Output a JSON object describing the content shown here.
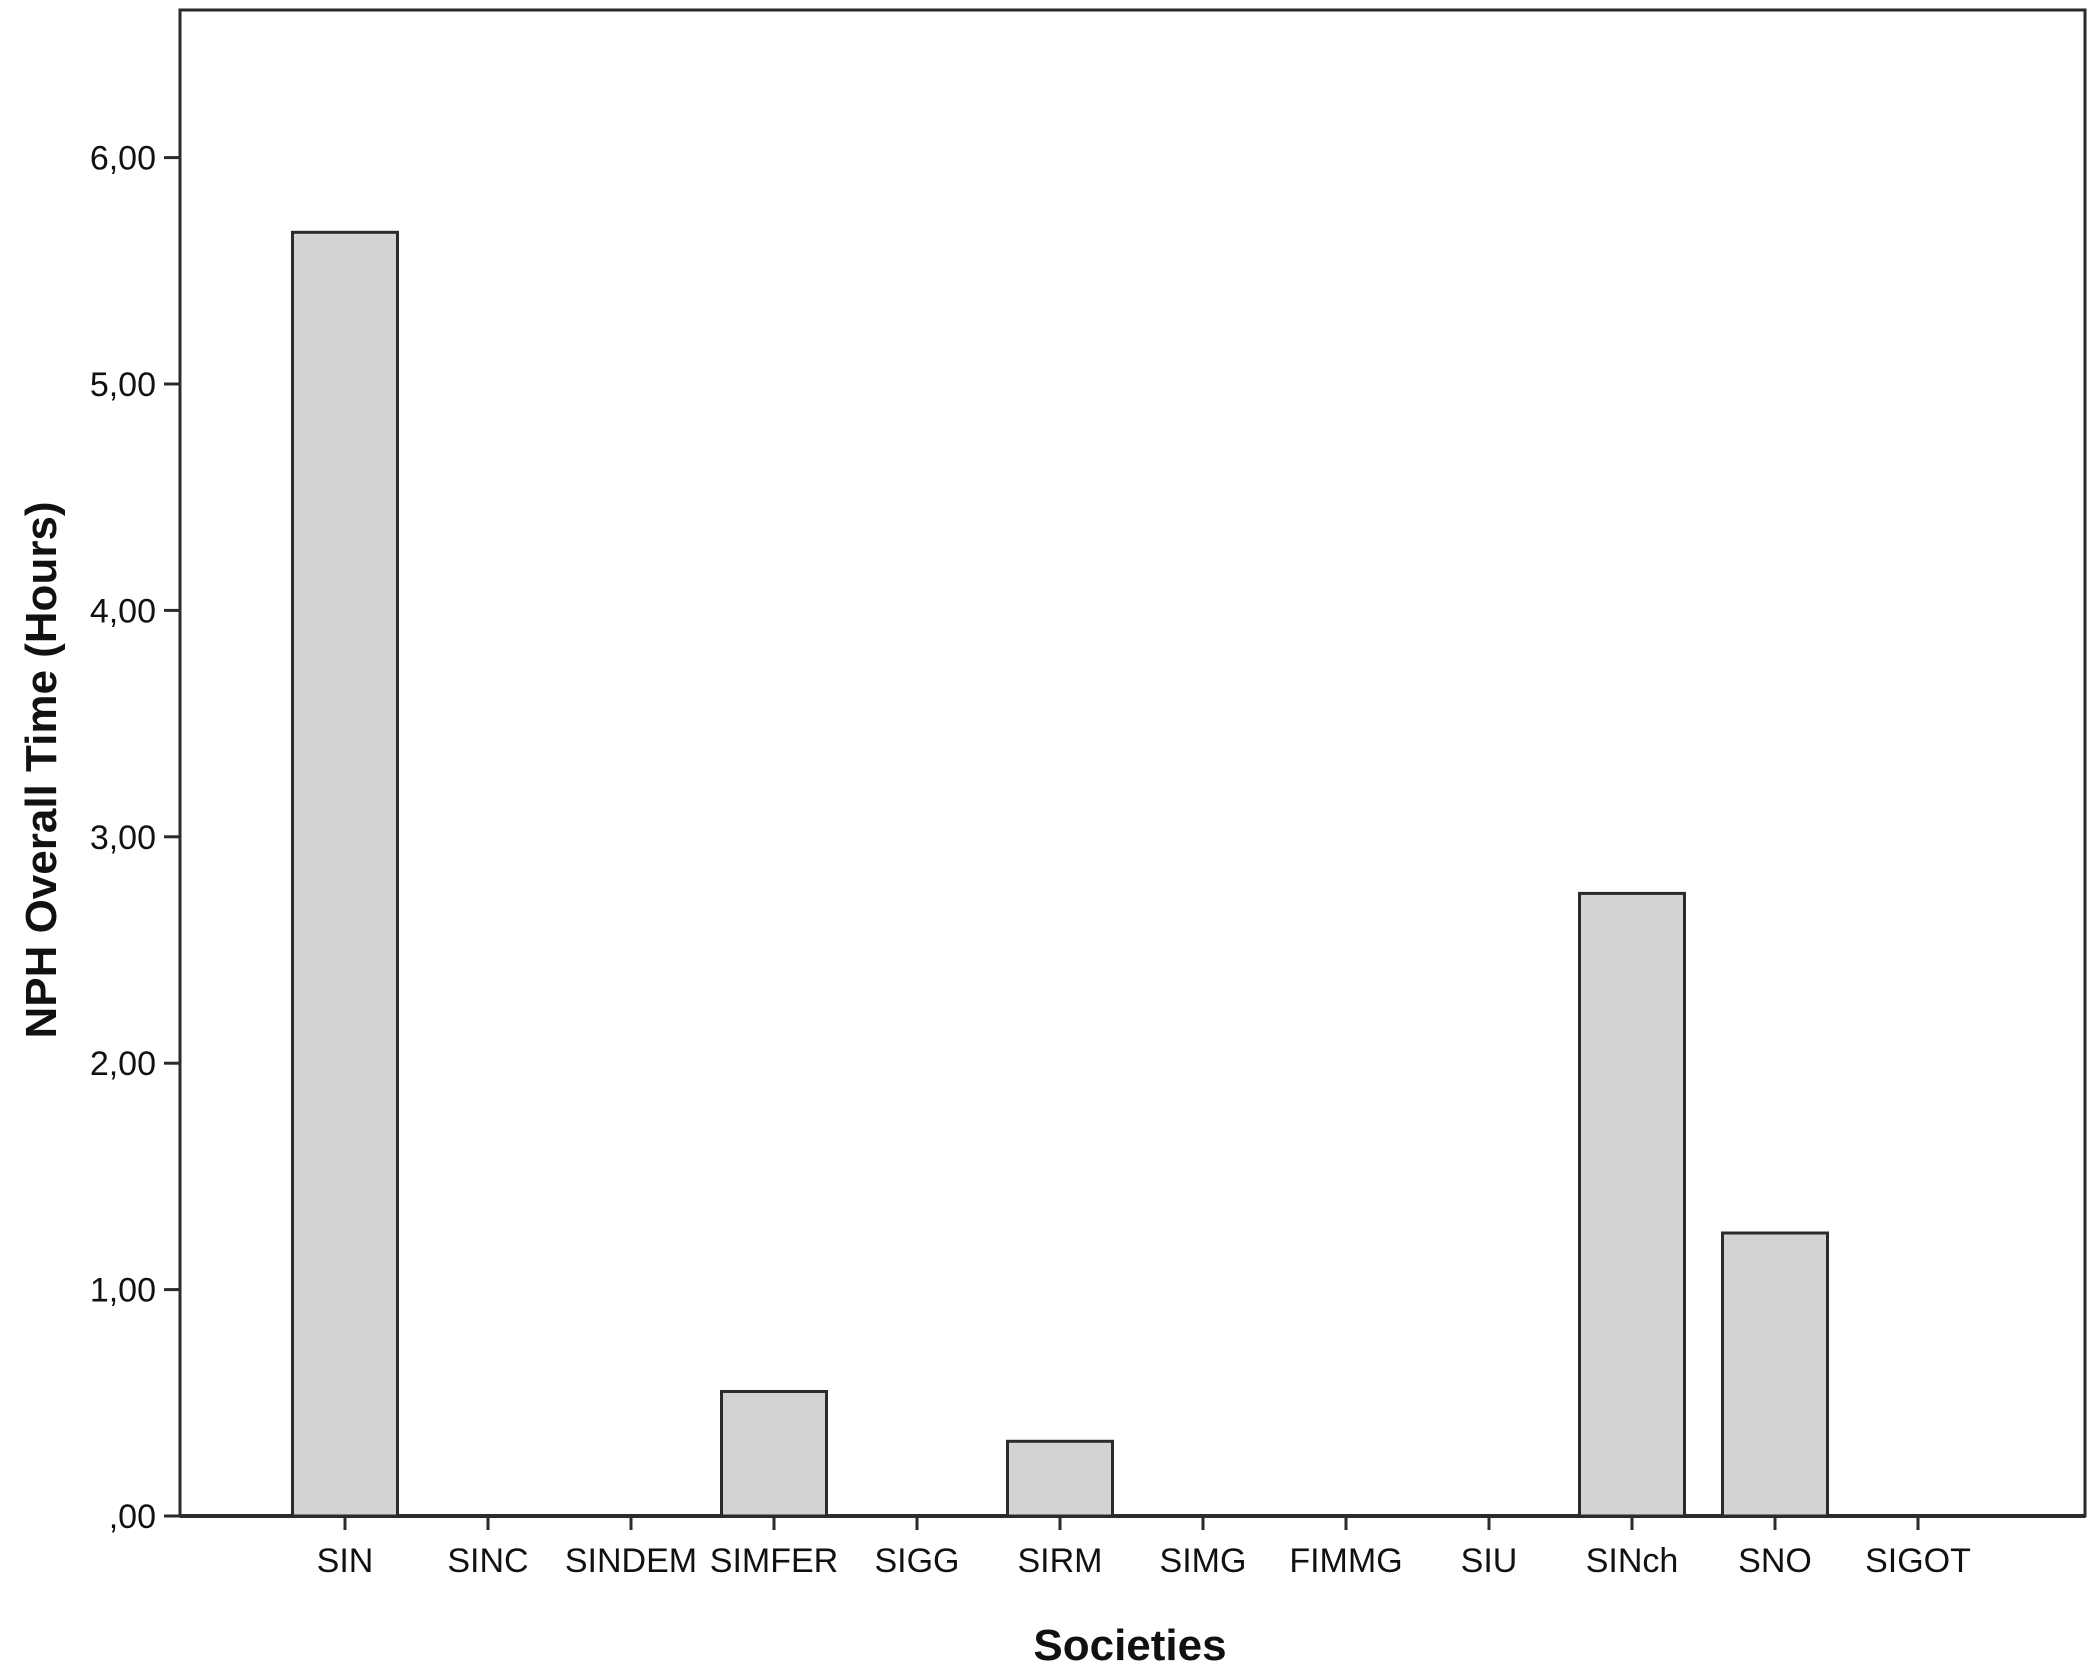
{
  "chart_data": {
    "type": "bar",
    "title": "",
    "xlabel": "Societies",
    "ylabel": "NPH Overall Time (Hours)",
    "categories": [
      "SIN",
      "SINC",
      "SINDEM",
      "SIMFER",
      "SIGG",
      "SIRM",
      "SIMG",
      "FIMMG",
      "SIU",
      "SINch",
      "SNO",
      "SIGOT"
    ],
    "values": [
      5.67,
      0,
      0,
      0.55,
      0,
      0.33,
      0,
      0,
      0,
      2.75,
      1.25,
      0
    ],
    "ylim": [
      0,
      6.6
    ],
    "yticks": [
      0,
      1,
      2,
      3,
      4,
      5,
      6
    ],
    "ytick_labels": [
      ",00",
      "1,00",
      "2,00",
      "3,00",
      "4,00",
      "5,00",
      "6,00"
    ],
    "grid": false,
    "legend": "none",
    "colors": {
      "bar_fill": "#d3d3d3",
      "bar_stroke": "#2b2b2b",
      "axis": "#2b2b2b",
      "text": "#111111"
    }
  }
}
